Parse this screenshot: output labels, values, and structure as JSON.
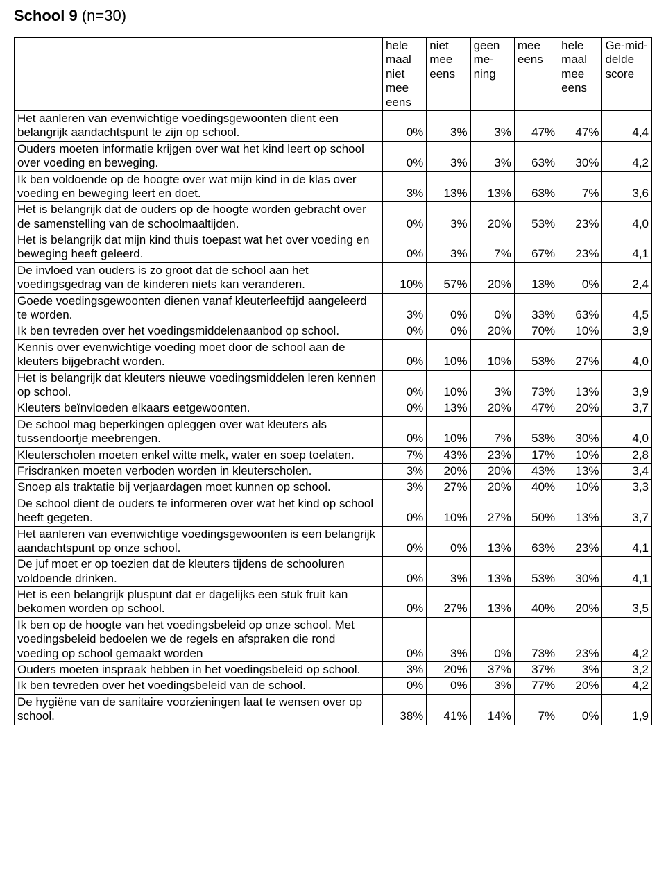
{
  "title": {
    "school": "School 9",
    "n": "(n=30)"
  },
  "columns": [
    "hele maal niet mee eens",
    "niet mee eens",
    "geen me-ning",
    "mee eens",
    "hele maal mee eens",
    "Ge-mid-delde score"
  ],
  "rows": [
    {
      "q": "Het aanleren van evenwichtige voedingsgewoonten dient een belangrijk aandachtspunt te zijn op school.",
      "v": [
        "0%",
        "3%",
        "3%",
        "47%",
        "47%",
        "4,4"
      ]
    },
    {
      "q": "Ouders moeten informatie krijgen over wat het kind leert op school over voeding en beweging.",
      "v": [
        "0%",
        "3%",
        "3%",
        "63%",
        "30%",
        "4,2"
      ]
    },
    {
      "q": "Ik ben voldoende op de hoogte over wat mijn kind in de klas over voeding en beweging leert en doet.",
      "v": [
        "3%",
        "13%",
        "13%",
        "63%",
        "7%",
        "3,6"
      ]
    },
    {
      "q": "Het is belangrijk dat de ouders op de hoogte worden gebracht over de samenstelling van de schoolmaaltijden.",
      "v": [
        "0%",
        "3%",
        "20%",
        "53%",
        "23%",
        "4,0"
      ]
    },
    {
      "q": "Het is belangrijk dat mijn kind thuis toepast wat het over voeding en beweging heeft geleerd.",
      "v": [
        "0%",
        "3%",
        "7%",
        "67%",
        "23%",
        "4,1"
      ]
    },
    {
      "q": "De invloed van ouders is zo groot dat de school aan het voedingsgedrag van de kinderen niets kan veranderen.",
      "v": [
        "10%",
        "57%",
        "20%",
        "13%",
        "0%",
        "2,4"
      ]
    },
    {
      "q": "Goede voedingsgewoonten dienen vanaf kleuterleeftijd aangeleerd te worden.",
      "v": [
        "3%",
        "0%",
        "0%",
        "33%",
        "63%",
        "4,5"
      ]
    },
    {
      "q": "Ik ben tevreden over het voedingsmiddelenaanbod op school.",
      "v": [
        "0%",
        "0%",
        "20%",
        "70%",
        "10%",
        "3,9"
      ]
    },
    {
      "q": "Kennis over evenwichtige voeding moet door de school aan de kleuters bijgebracht worden.",
      "v": [
        "0%",
        "10%",
        "10%",
        "53%",
        "27%",
        "4,0"
      ]
    },
    {
      "q": "Het is belangrijk dat kleuters nieuwe voedingsmiddelen leren kennen op school.",
      "v": [
        "0%",
        "10%",
        "3%",
        "73%",
        "13%",
        "3,9"
      ]
    },
    {
      "q": "Kleuters beïnvloeden elkaars eetgewoonten.",
      "v": [
        "0%",
        "13%",
        "20%",
        "47%",
        "20%",
        "3,7"
      ]
    },
    {
      "q": "De school mag beperkingen opleggen over wat kleuters als tussendoortje meebrengen.",
      "v": [
        "0%",
        "10%",
        "7%",
        "53%",
        "30%",
        "4,0"
      ]
    },
    {
      "q": "Kleuterscholen moeten enkel witte melk, water en soep toelaten.",
      "v": [
        "7%",
        "43%",
        "23%",
        "17%",
        "10%",
        "2,8"
      ]
    },
    {
      "q": "Frisdranken moeten verboden worden in kleuterscholen.",
      "v": [
        "3%",
        "20%",
        "20%",
        "43%",
        "13%",
        "3,4"
      ]
    },
    {
      "q": "Snoep als traktatie bij verjaardagen moet kunnen op school.",
      "v": [
        "3%",
        "27%",
        "20%",
        "40%",
        "10%",
        "3,3"
      ]
    },
    {
      "q": "De school dient de ouders te informeren over wat het kind op school heeft gegeten.",
      "v": [
        "0%",
        "10%",
        "27%",
        "50%",
        "13%",
        "3,7"
      ]
    },
    {
      "q": "Het aanleren van evenwichtige voedingsgewoonten is een belangrijk aandachtspunt op onze school.",
      "v": [
        "0%",
        "0%",
        "13%",
        "63%",
        "23%",
        "4,1"
      ]
    },
    {
      "q": "De juf moet er op toezien dat de kleuters tijdens de schooluren voldoende drinken.",
      "v": [
        "0%",
        "3%",
        "13%",
        "53%",
        "30%",
        "4,1"
      ]
    },
    {
      "q": "Het is een belangrijk pluspunt dat er dagelijks een stuk fruit kan bekomen worden op school.",
      "v": [
        "0%",
        "27%",
        "13%",
        "40%",
        "20%",
        "3,5"
      ]
    },
    {
      "q": "Ik ben op de hoogte van het voedingsbeleid op onze school. Met voedingsbeleid bedoelen we de regels en afspraken die rond voeding op school gemaakt worden",
      "v": [
        "0%",
        "3%",
        "0%",
        "73%",
        "23%",
        "4,2"
      ]
    },
    {
      "q": "Ouders moeten inspraak hebben in het voedingsbeleid op school.",
      "v": [
        "3%",
        "20%",
        "37%",
        "37%",
        "3%",
        "3,2"
      ]
    },
    {
      "q": "Ik ben tevreden over het voedingsbeleid van de school.",
      "v": [
        "0%",
        "0%",
        "3%",
        "77%",
        "20%",
        "4,2"
      ]
    },
    {
      "q": "De hygiëne van de sanitaire voorzieningen laat te wensen over op school.",
      "v": [
        "38%",
        "41%",
        "14%",
        "7%",
        "0%",
        "1,9"
      ]
    }
  ]
}
